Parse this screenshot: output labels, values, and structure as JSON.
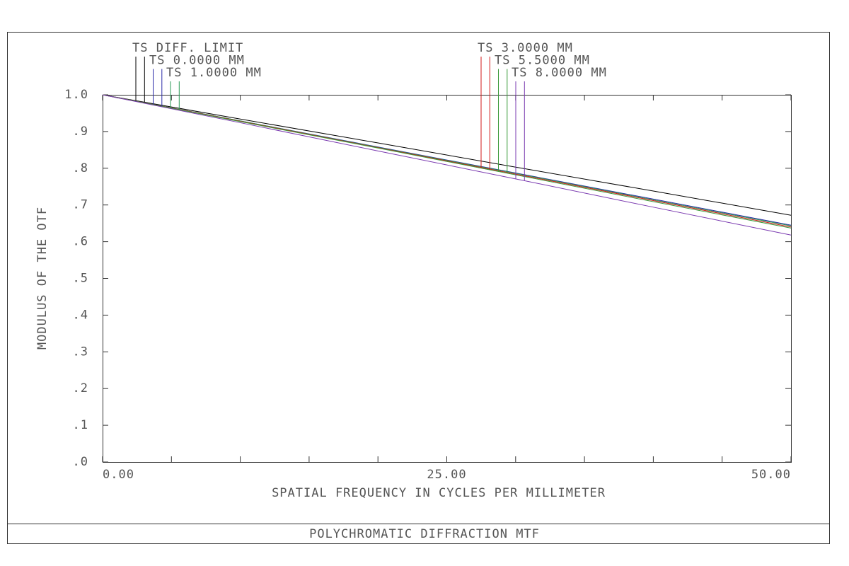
{
  "chart_data": {
    "type": "line",
    "title": "POLYCHROMATIC DIFFRACTION MTF",
    "xlabel": "SPATIAL FREQUENCY IN CYCLES PER MILLIMETER",
    "ylabel": "MODULUS OF THE OTF",
    "x": [
      0,
      10,
      20,
      30,
      40,
      50
    ],
    "series": [
      {
        "name": "TS DIFF. LIMIT",
        "color": "#000000",
        "values": [
          1.0,
          0.934,
          0.869,
          0.803,
          0.738,
          0.672
        ]
      },
      {
        "name": "TS 0.0000 MM",
        "color": "#2a2aa8",
        "values": [
          1.0,
          0.929,
          0.858,
          0.787,
          0.716,
          0.645
        ]
      },
      {
        "name": "TS 1.0000 MM",
        "color": "#2a9a55",
        "values": [
          1.0,
          0.929,
          0.857,
          0.786,
          0.714,
          0.643
        ]
      },
      {
        "name": "TS 3.0000 MM",
        "color": "#d01818",
        "values": [
          1.0,
          0.928,
          0.856,
          0.784,
          0.712,
          0.64
        ]
      },
      {
        "name": "TS 5.5000 MM",
        "color": "#3a9a3a",
        "values": [
          1.0,
          0.927,
          0.855,
          0.782,
          0.709,
          0.637
        ]
      },
      {
        "name": "TS 8.0000 MM",
        "color": "#7a3ab0",
        "values": [
          1.0,
          0.924,
          0.847,
          0.771,
          0.694,
          0.618
        ]
      }
    ],
    "xlim": [
      0,
      50
    ],
    "xticks": [
      {
        "value": 0,
        "label": "0.00"
      },
      {
        "value": 25,
        "label": "25.00"
      },
      {
        "value": 50,
        "label": "50.00"
      }
    ],
    "xminorticks": [
      5,
      10,
      15,
      20,
      30,
      35,
      40,
      45
    ],
    "ylim": [
      0,
      1
    ],
    "yticks": [
      {
        "value": 0,
        "label": ".0"
      },
      {
        "value": 0.1,
        "label": ".1"
      },
      {
        "value": 0.2,
        "label": ".2"
      },
      {
        "value": 0.3,
        "label": ".3"
      },
      {
        "value": 0.4,
        "label": ".4"
      },
      {
        "value": 0.5,
        "label": ".5"
      },
      {
        "value": 0.6,
        "label": ".6"
      },
      {
        "value": 0.7,
        "label": ".7"
      },
      {
        "value": 0.8,
        "label": ".8"
      },
      {
        "value": 0.9,
        "label": ".9"
      },
      {
        "value": 1.0,
        "label": "1.0"
      }
    ],
    "grid": false
  }
}
